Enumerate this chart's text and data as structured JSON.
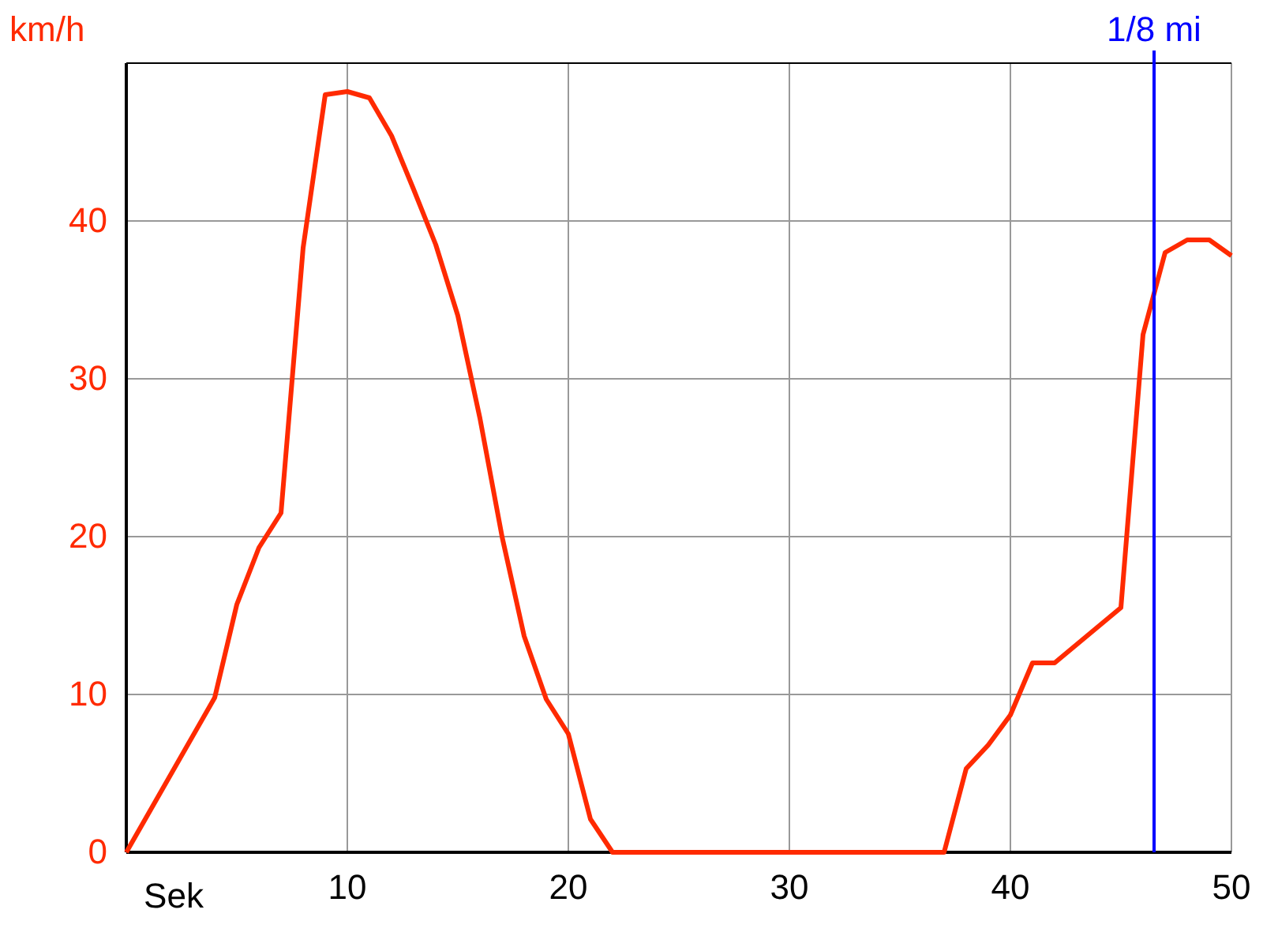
{
  "chart_data": {
    "type": "line",
    "xlabel": "Sek",
    "ylabel": "km/h",
    "x": [
      0,
      4,
      5,
      6,
      7,
      8,
      9,
      10,
      11,
      12,
      13,
      14,
      15,
      16,
      17,
      18,
      19,
      20,
      21,
      22,
      37,
      38,
      39,
      40,
      41,
      42,
      45,
      46,
      47,
      48,
      49,
      50
    ],
    "series": [
      {
        "color": "#ff2a00",
        "values": [
          0,
          9.8,
          15.7,
          19.3,
          21.5,
          38.3,
          48,
          48.2,
          47.8,
          45.4,
          42,
          38.5,
          34,
          27.5,
          20,
          13.7,
          9.7,
          7.5,
          2.1,
          0,
          0,
          5.3,
          6.8,
          8.7,
          12,
          12,
          15.5,
          32.8,
          38,
          38.8,
          38.8,
          37.8
        ]
      }
    ],
    "xlim": [
      0,
      50
    ],
    "ylim": [
      0,
      50
    ],
    "xticks": [
      10,
      20,
      30,
      40,
      50
    ],
    "yticks": [
      0,
      10,
      20,
      30,
      40
    ],
    "grid": true,
    "marker": "none",
    "line_style": "solid",
    "ref_lines": [
      {
        "axis": "x",
        "value": 46.5,
        "label": "1/8 mi",
        "color": "#0000ff"
      }
    ]
  }
}
